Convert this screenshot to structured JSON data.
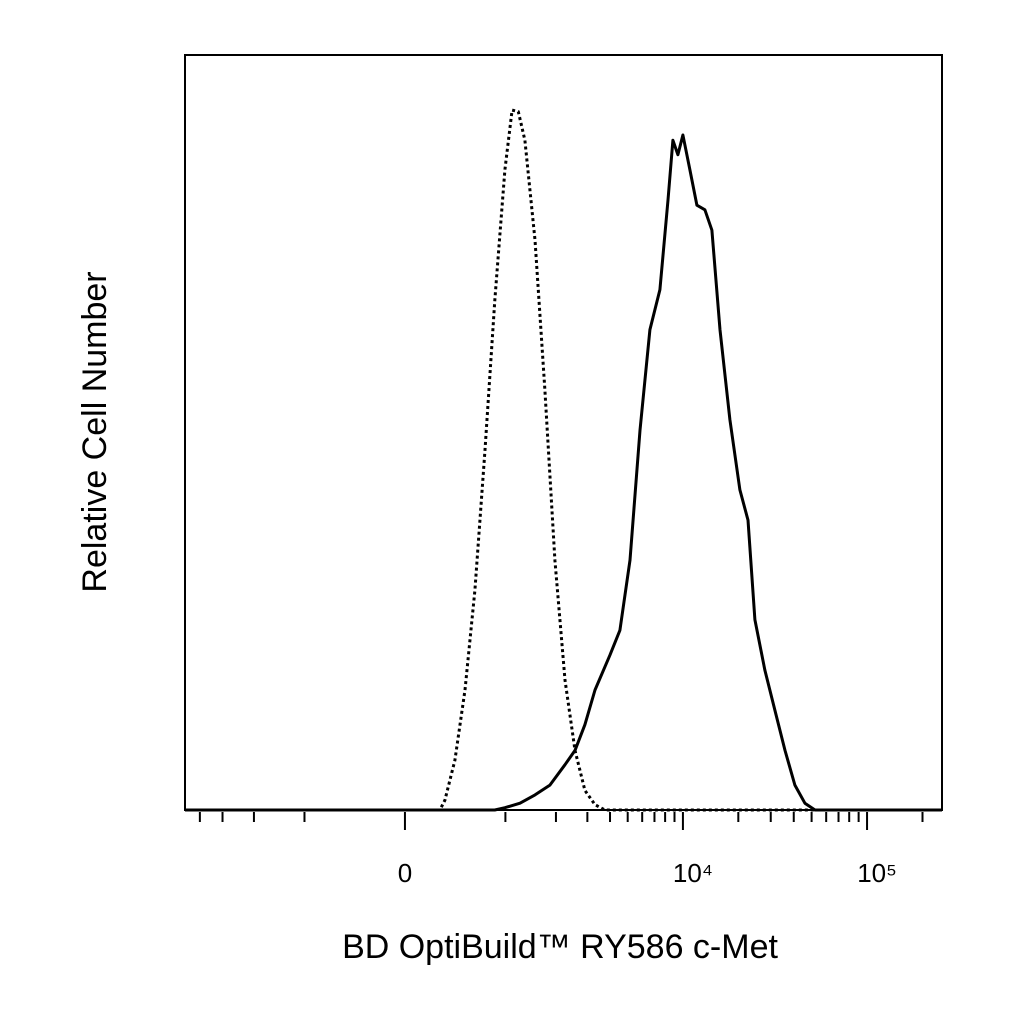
{
  "chart_data": {
    "type": "line",
    "x_label": "BD OptiBuild™ RY586 c-Met",
    "y_label": "Relative Cell Number",
    "xscale": "biexponential",
    "xlim": [
      -4826,
      255200
    ],
    "ylim": [
      0,
      100
    ],
    "xticks": [
      0,
      {
        "value": 10000,
        "label": "10⁴"
      },
      {
        "value": 100000,
        "label": "10⁵"
      }
    ],
    "xminorticks": [
      -4000,
      -3000,
      -2000,
      -1000,
      1000,
      2000,
      3000,
      4000,
      5000,
      6000,
      7000,
      8000,
      9000,
      20000,
      30000,
      40000,
      50000,
      60000,
      70000,
      80000,
      90000,
      200000
    ],
    "series": [
      {
        "color": "#000000",
        "dash": "dotted",
        "x": [
          -4826,
          280,
          323,
          413,
          510,
          614,
          729,
          852,
          993,
          1102,
          1203,
          1320,
          1514,
          1730,
          1972,
          2249,
          2559,
          2908,
          3305,
          3751,
          255200
        ],
        "values": [
          0,
          0,
          1.3,
          6.6,
          15.9,
          29.1,
          47.7,
          67.5,
          84.8,
          92.7,
          92.5,
          88.7,
          75.5,
          55.6,
          33.1,
          17.2,
          7.9,
          2.6,
          0.7,
          0,
          0
        ]
      },
      {
        "color": "#000000",
        "dash": "solid",
        "x": [
          -4826,
          852,
          993,
          1232,
          1514,
          1848,
          2249,
          2559,
          2908,
          3305,
          3996,
          4534,
          5144,
          5834,
          6614,
          7498,
          8290,
          8823,
          9393,
          10000,
          10918,
          11916,
          13175,
          14378,
          15897,
          18011,
          20410,
          22562,
          24620,
          27900,
          31620,
          35836,
          40598,
          46004,
          52142,
          255200
        ],
        "values": [
          0,
          0,
          0.3,
          0.9,
          2.0,
          3.3,
          6.0,
          7.9,
          11.3,
          15.9,
          20.5,
          23.8,
          33.1,
          50.3,
          63.6,
          68.9,
          80.8,
          88.7,
          86.8,
          89.4,
          84.8,
          80.1,
          79.5,
          76.8,
          63.6,
          51.7,
          42.4,
          38.4,
          25.2,
          18.5,
          13.2,
          7.9,
          3.3,
          0.9,
          0,
          0
        ]
      }
    ]
  }
}
